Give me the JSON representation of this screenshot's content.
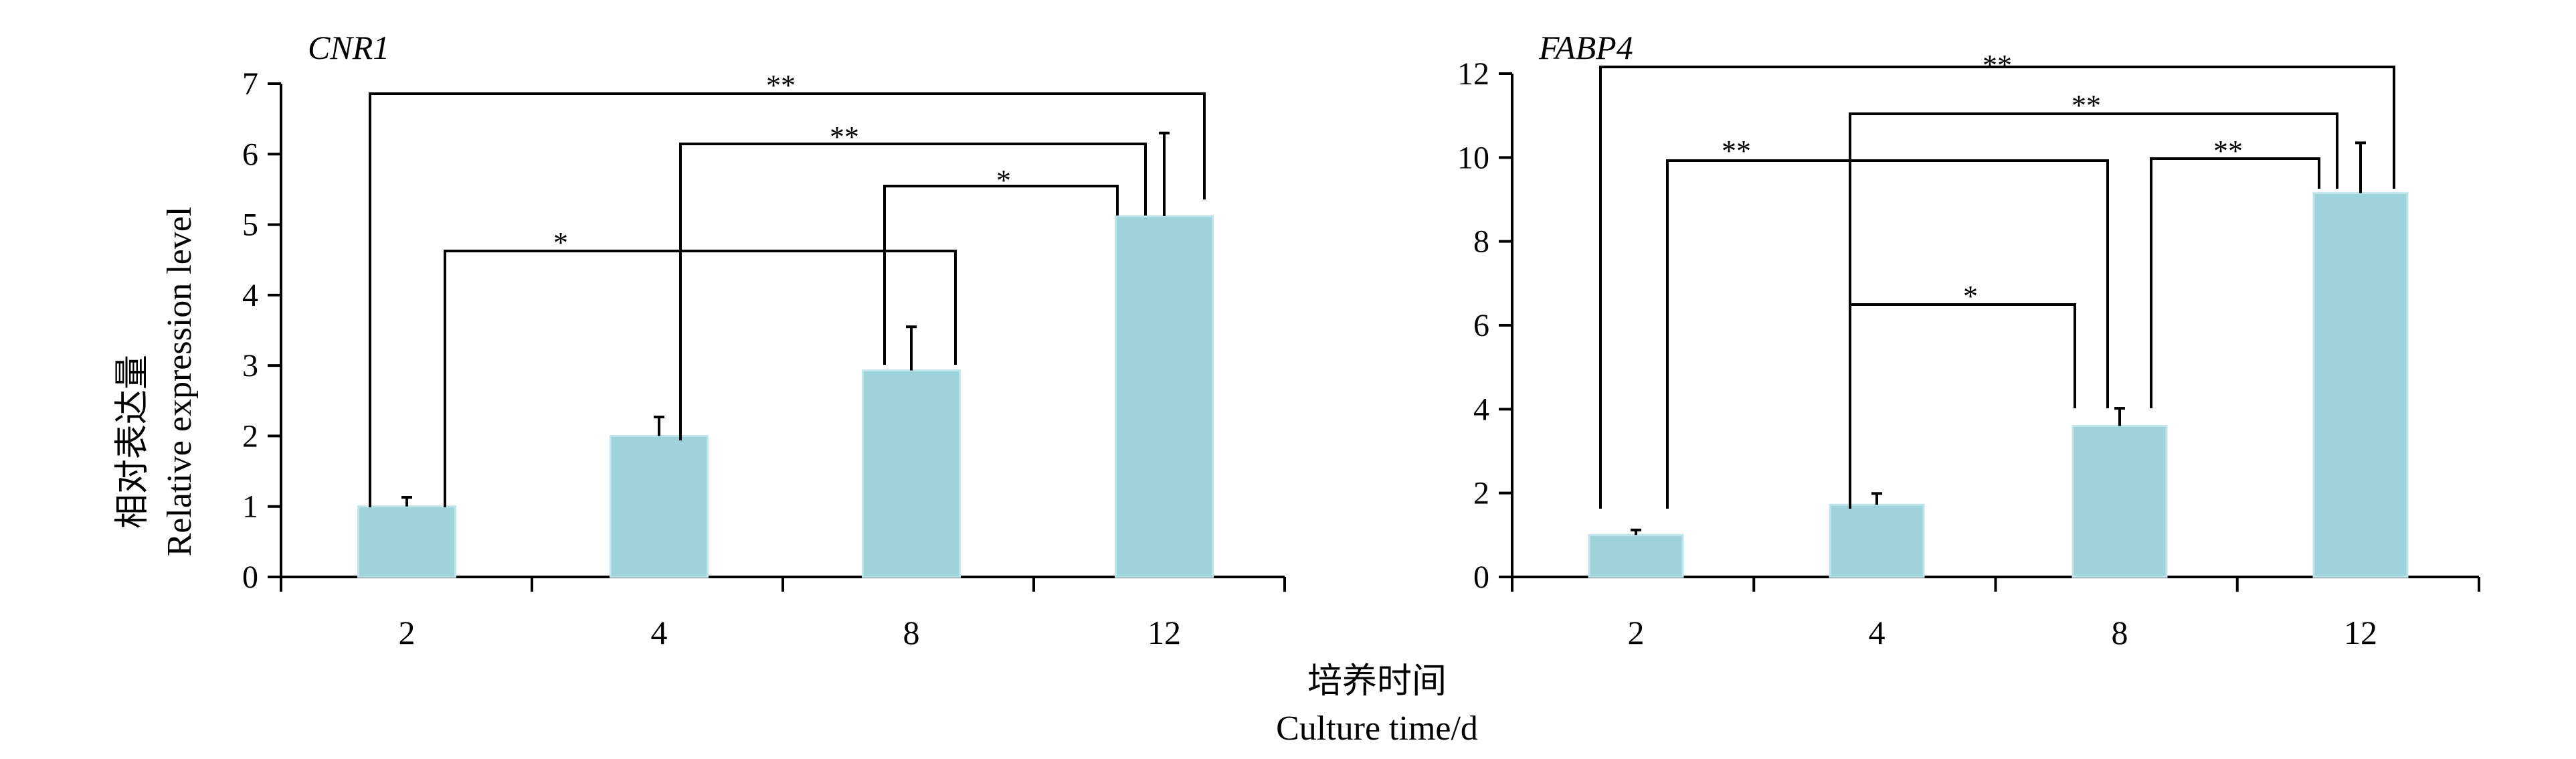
{
  "x_label": {
    "zh": "培养时间",
    "en": "Culture time/d"
  },
  "y_label": {
    "zh": "相对表达量",
    "en": "Relative expression level"
  },
  "chart_data": [
    {
      "type": "bar",
      "title": "CNR1",
      "categories": [
        "2",
        "4",
        "8",
        "12"
      ],
      "values": [
        1.0,
        2.0,
        2.93,
        5.12
      ],
      "errors": [
        0.13,
        0.27,
        0.62,
        1.18
      ],
      "ylim": [
        0,
        7
      ],
      "yticks": [
        0,
        1,
        2,
        3,
        4,
        5,
        6,
        7
      ],
      "significance": [
        {
          "from": "2",
          "to": "12",
          "label": "**"
        },
        {
          "from": "4",
          "to": "12",
          "label": "**"
        },
        {
          "from": "8",
          "to": "12",
          "label": "*"
        },
        {
          "from": "2",
          "to": "8",
          "label": "*"
        }
      ]
    },
    {
      "type": "bar",
      "title": "FABP4",
      "categories": [
        "2",
        "4",
        "8",
        "12"
      ],
      "values": [
        1.0,
        1.72,
        3.6,
        9.15
      ],
      "errors": [
        0.12,
        0.27,
        0.42,
        1.2
      ],
      "ylim": [
        0,
        12
      ],
      "yticks": [
        0,
        2,
        4,
        6,
        8,
        10,
        12
      ],
      "significance": [
        {
          "from": "2",
          "to": "12",
          "label": "**"
        },
        {
          "from": "4",
          "to": "12",
          "label": "**"
        },
        {
          "from": "2",
          "to": "8",
          "label": "**"
        },
        {
          "from": "8",
          "to": "12",
          "label": "**"
        },
        {
          "from": "4",
          "to": "8",
          "label": "*"
        }
      ]
    }
  ]
}
